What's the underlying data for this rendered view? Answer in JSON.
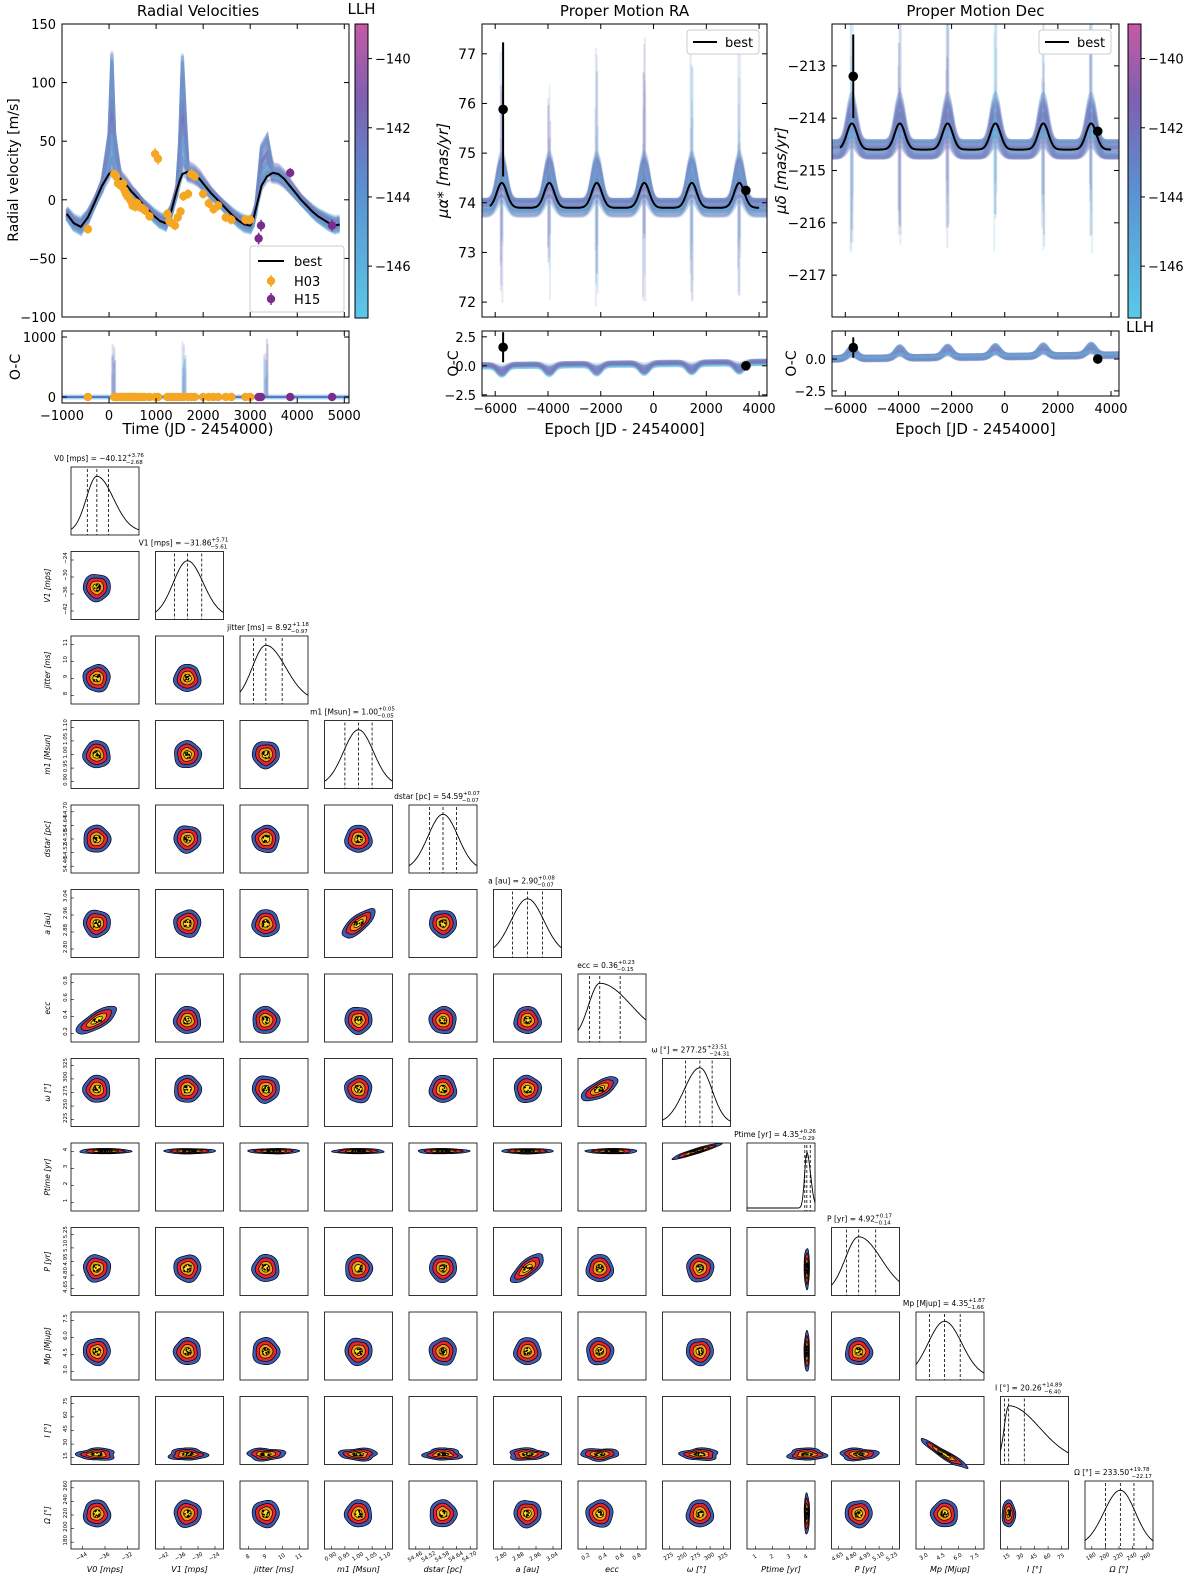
{
  "figure": {
    "colorbar": {
      "title": "LLH",
      "ticks": [
        "−140",
        "−142",
        "−144",
        "−146"
      ],
      "range": [
        -147.5,
        -139
      ]
    },
    "colorbar2": {
      "label": "LLH"
    },
    "legend": {
      "best": "best",
      "h03": "H03",
      "h15": "H15"
    }
  },
  "colors": {
    "h03": "#f5a623",
    "h15": "#7b2d8e",
    "best": "#000000",
    "cloud_low": "#5bc8e8",
    "cloud_high": "#8a55a8",
    "kde_outer": "#3d5ab4",
    "kde_2": "#e8262a",
    "kde_3": "#f39a1e",
    "kde_inner": "#ffe514"
  },
  "chart_data": [
    {
      "type": "line",
      "title": "Radial Velocities",
      "ylabel": "Radial velocity [m/s]",
      "xlabel": "Time (JD - 2454000)",
      "xlim": [
        -1000,
        5100
      ],
      "ylim": [
        -100,
        150
      ],
      "xticks": [
        "−1000",
        "0",
        "1000",
        "2000",
        "3000",
        "4000",
        "5000"
      ],
      "yticks": [
        "−100",
        "−50",
        "0",
        "50",
        "100",
        "150"
      ],
      "series": [
        {
          "name": "best",
          "x": [
            -900,
            -750,
            -600,
            -450,
            -300,
            -150,
            0,
            60,
            120,
            240,
            360,
            480,
            600,
            720,
            840,
            960,
            1080,
            1200,
            1320,
            1440,
            1500,
            1560,
            1680,
            1800,
            1920,
            2040,
            2160,
            2280,
            2400,
            2520,
            2640,
            2760,
            2880,
            3000,
            3060,
            3120,
            3240,
            3360,
            3480,
            3600,
            3720,
            3840,
            3960,
            4080,
            4200,
            4320,
            4440,
            4560,
            4680,
            4800,
            4900
          ],
          "y": [
            -12,
            -20,
            -23,
            -15,
            -2,
            12,
            22,
            24,
            22,
            18,
            13,
            7,
            2,
            -4,
            -9,
            -14,
            -18,
            -20,
            -10,
            8,
            16,
            22,
            24,
            22,
            18,
            12,
            6,
            1,
            -4,
            -9,
            -14,
            -18,
            -21,
            -22,
            -18,
            -8,
            12,
            20,
            23,
            22,
            18,
            12,
            6,
            0,
            -5,
            -10,
            -14,
            -17,
            -20,
            -22,
            -21
          ]
        },
        {
          "name": "H03",
          "x": [
            -450,
            110,
            150,
            190,
            250,
            300,
            330,
            360,
            390,
            420,
            450,
            480,
            500,
            530,
            560,
            600,
            640,
            700,
            760,
            860,
            980,
            1040,
            1240,
            1280,
            1340,
            1400,
            1460,
            1520,
            1580,
            1680,
            1750,
            1820,
            2000,
            2120,
            2220,
            2320,
            2480,
            2600,
            2900,
            3000
          ],
          "y": [
            -25,
            22,
            20,
            14,
            12,
            14,
            8,
            5,
            3,
            2,
            0,
            -2,
            -5,
            -4,
            -6,
            -3,
            -6,
            -7,
            -9,
            -14,
            39,
            35,
            -12,
            -18,
            -20,
            -22,
            -15,
            -10,
            3,
            5,
            22,
            20,
            5,
            -3,
            -8,
            -5,
            -15,
            -17,
            -17,
            -17
          ],
          "err": [
            4,
            4,
            4,
            4,
            4,
            4,
            4,
            4,
            4,
            4,
            4,
            4,
            4,
            4,
            4,
            4,
            4,
            4,
            4,
            4,
            5,
            5,
            4,
            4,
            4,
            4,
            4,
            4,
            4,
            4,
            4,
            4,
            4,
            4,
            4,
            4,
            4,
            4,
            4,
            4
          ]
        },
        {
          "name": "H15",
          "x": [
            3180,
            3230,
            3850,
            4740
          ],
          "y": [
            -33,
            -22,
            23,
            -22
          ],
          "err": [
            5,
            5,
            4,
            5
          ]
        }
      ]
    },
    {
      "type": "line",
      "ylabel": "O-C",
      "ylim": [
        -100,
        1100
      ],
      "yticks": [
        "0",
        "1000"
      ],
      "xlim": [
        -1000,
        5100
      ],
      "x_h03": [
        -450,
        110,
        150,
        190,
        250,
        300,
        330,
        360,
        390,
        420,
        450,
        480,
        500,
        530,
        560,
        600,
        640,
        700,
        760,
        860,
        980,
        1040,
        1240,
        1280,
        1340,
        1400,
        1460,
        1520,
        1580,
        1680,
        1750,
        1820,
        2000,
        2120,
        2220,
        2320,
        2480,
        2600,
        2900,
        3000
      ],
      "y_h03": [
        0,
        0,
        0,
        0,
        0,
        0,
        0,
        0,
        0,
        0,
        0,
        0,
        0,
        0,
        0,
        0,
        0,
        0,
        0,
        0,
        0,
        0,
        0,
        0,
        0,
        0,
        0,
        0,
        0,
        0,
        0,
        0,
        0,
        0,
        0,
        0,
        0,
        0,
        0,
        0
      ],
      "x_h15": [
        3180,
        3230,
        3850,
        4740
      ],
      "y_h15": [
        0,
        0,
        0,
        0
      ]
    },
    {
      "type": "line",
      "title": "Proper Motion RA",
      "ylabel": "μα* [mas/yr]",
      "xlabel": "Epoch [JD - 2454000]",
      "xlim": [
        -6500,
        4300
      ],
      "ylim": [
        71.7,
        77.6
      ],
      "yticks": [
        "72",
        "73",
        "74",
        "75",
        "76",
        "77"
      ],
      "xticks": [
        "−6000",
        "−4000",
        "−2000",
        "0",
        "2000",
        "4000"
      ],
      "period": 1800,
      "peak_epochs": [
        -5750,
        -3950,
        -2150,
        -350,
        1450,
        3250
      ],
      "best_base": 73.9,
      "best_peak": 74.4,
      "points": [
        {
          "x": -5700,
          "y": 75.88,
          "err": 1.35
        },
        {
          "x": 3500,
          "y": 74.25,
          "err": 0.05
        }
      ]
    },
    {
      "type": "line",
      "ylabel": "O-C",
      "ylim": [
        -2.6,
        3.0
      ],
      "yticks": [
        "2.5",
        "0.0",
        "−2.5"
      ],
      "points": [
        {
          "x": -5700,
          "y": 1.6,
          "err": 1.3
        },
        {
          "x": 3500,
          "y": 0.0,
          "err": 0.05
        }
      ]
    },
    {
      "type": "line",
      "title": "Proper Motion Dec",
      "ylabel": "μδ [mas/yr]",
      "xlabel": "Epoch [JD - 2454000]",
      "xlim": [
        -6500,
        4300
      ],
      "ylim": [
        -217.8,
        -212.2
      ],
      "yticks": [
        "−213",
        "−214",
        "−215",
        "−216",
        "−217"
      ],
      "xticks": [
        "−6000",
        "−4000",
        "−2000",
        "0",
        "2000",
        "4000"
      ],
      "peak_epochs": [
        -5750,
        -3950,
        -2150,
        -350,
        1450,
        3250
      ],
      "best_base": -214.6,
      "best_peak": -214.1,
      "points": [
        {
          "x": -5700,
          "y": -213.2,
          "err": 0.8
        },
        {
          "x": 3500,
          "y": -214.25,
          "err": 0.05
        }
      ]
    },
    {
      "type": "line",
      "ylabel": "O-C",
      "ylim": [
        -2.9,
        2.2
      ],
      "yticks": [
        "0.0",
        "−2.5"
      ],
      "points": [
        {
          "x": -5700,
          "y": 0.9,
          "err": 0.8
        },
        {
          "x": 3500,
          "y": 0.0,
          "err": 0.05
        }
      ]
    },
    {
      "type": "heatmap",
      "title": "corner",
      "params": [
        {
          "label": "V0 [mps]",
          "title": "V0 [mps] = −40.12",
          "sup": "+3.76",
          "sub": "−2.68",
          "ticks": [
            "−44",
            "−36",
            "−32"
          ],
          "med": 0.38,
          "lo": 0.24,
          "hi": 0.55,
          "skew": 0.3
        },
        {
          "label": "V1 [mps]",
          "title": "V1 [mps] = −31.86",
          "sup": "+5.71",
          "sub": "−5.61",
          "ticks": [
            "−42",
            "−36",
            "−30",
            "−24"
          ],
          "med": 0.47,
          "lo": 0.28,
          "hi": 0.68,
          "skew": 0.0
        },
        {
          "label": "jitter [ms]",
          "title": "jitter [ms] = 8.92",
          "sup": "+1.18",
          "sub": "−0.97",
          "ticks": [
            "8",
            "9",
            "10",
            "11"
          ],
          "med": 0.38,
          "lo": 0.2,
          "hi": 0.62,
          "skew": 0.1
        },
        {
          "label": "m1 [Msun]",
          "title": "m1 [Msun] = 1.00",
          "sup": "+0.05",
          "sub": "−0.05",
          "ticks": [
            "0.90",
            "0.95",
            "1.00",
            "1.05",
            "1.10"
          ],
          "med": 0.5,
          "lo": 0.3,
          "hi": 0.7,
          "skew": 0.0
        },
        {
          "label": "dstar [pc]",
          "title": "dstar [pc] = 54.59",
          "sup": "+0.07",
          "sub": "−0.07",
          "ticks": [
            "54.46",
            "54.52",
            "54.58",
            "54.64",
            "54.70"
          ],
          "med": 0.5,
          "lo": 0.3,
          "hi": 0.7,
          "skew": 0.0
        },
        {
          "label": "a [au]",
          "title": "a [au] = 2.90",
          "sup": "+0.08",
          "sub": "−0.07",
          "ticks": [
            "2.80",
            "2.88",
            "2.96",
            "3.04"
          ],
          "med": 0.5,
          "lo": 0.28,
          "hi": 0.72,
          "skew": 0.0
        },
        {
          "label": "ecc",
          "title": "ecc = 0.36",
          "sup": "+0.23",
          "sub": "−0.15",
          "ticks": [
            "0.2",
            "0.4",
            "0.6",
            "0.8"
          ],
          "med": 0.32,
          "lo": 0.17,
          "hi": 0.62,
          "skew": 0.4
        },
        {
          "label": "ω [°]",
          "title": "ω [°] = 277.25",
          "sup": "+23.51",
          "sub": "−24.31",
          "ticks": [
            "225",
            "250",
            "275",
            "300",
            "325"
          ],
          "med": 0.55,
          "lo": 0.34,
          "hi": 0.73,
          "skew": -0.1
        },
        {
          "label": "Ptime [yr]",
          "title": "Ptime [yr] = 4.35",
          "sup": "+0.26",
          "sub": "−0.29",
          "ticks": [
            "1",
            "2",
            "3",
            "4"
          ],
          "med": 0.88,
          "lo": 0.85,
          "hi": 0.93,
          "skew": 0.0
        },
        {
          "label": "P [yr]",
          "title": "P [yr] = 4.92",
          "sup": "+0.17",
          "sub": "−0.14",
          "ticks": [
            "4.65",
            "4.80",
            "4.95",
            "5.10",
            "5.25"
          ],
          "med": 0.4,
          "lo": 0.22,
          "hi": 0.65,
          "skew": 0.2
        },
        {
          "label": "Mp [Mjup]",
          "title": "Mp [Mjup] = 4.35",
          "sup": "+1.87",
          "sub": "−1.66",
          "ticks": [
            "3.0",
            "4.5",
            "6.0",
            "7.5"
          ],
          "med": 0.42,
          "lo": 0.2,
          "hi": 0.65,
          "skew": 0.0
        },
        {
          "label": "I [°]",
          "title": "I [°] = 20.26",
          "sup": "+14.89",
          "sub": "−6.40",
          "ticks": [
            "15",
            "30",
            "45",
            "60",
            "75"
          ],
          "med": 0.12,
          "lo": 0.06,
          "hi": 0.35,
          "skew": 0.8
        },
        {
          "label": "Ω [°]",
          "title": "Ω [°] = 233.50",
          "sup": "+19.78",
          "sub": "−22.17",
          "ticks": [
            "180",
            "200",
            "220",
            "240",
            "260"
          ],
          "med": 0.52,
          "lo": 0.3,
          "hi": 0.72,
          "skew": 0.0
        }
      ]
    }
  ]
}
